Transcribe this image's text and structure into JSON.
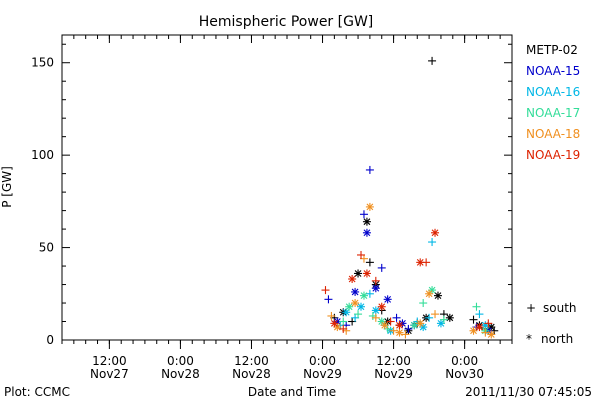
{
  "chart_data": {
    "type": "scatter",
    "title": "Hemispheric Power [GW]",
    "xlabel": "Date and Time",
    "ylabel": "P [GW]",
    "ylim": [
      0,
      165
    ],
    "y_ticks": [
      0,
      50,
      100,
      150
    ],
    "x_ticks": [
      {
        "t": "2011-11-27T12:00",
        "time": "12:00",
        "date": "Nov27"
      },
      {
        "t": "2011-11-28T00:00",
        "time": "0:00",
        "date": "Nov28"
      },
      {
        "t": "2011-11-28T12:00",
        "time": "12:00",
        "date": "Nov28"
      },
      {
        "t": "2011-11-29T00:00",
        "time": "0:00",
        "date": "Nov29"
      },
      {
        "t": "2011-11-29T12:00",
        "time": "12:00",
        "date": "Nov29"
      },
      {
        "t": "2011-11-30T00:00",
        "time": "0:00",
        "date": "Nov30"
      }
    ],
    "xlim": [
      "2011-11-27T04:00",
      "2011-11-30T08:00"
    ],
    "legend_placement": "right",
    "marker_legend": {
      "south": "south",
      "north": "north",
      "south_symbol": "+",
      "north_symbol": "*"
    },
    "series": [
      {
        "name": "METP-02",
        "color": "#000000",
        "points": [
          [
            "2011-11-29T02:00",
            12,
            "+"
          ],
          [
            "2011-11-29T03:30",
            15,
            "*"
          ],
          [
            "2011-11-29T05:00",
            10,
            "+"
          ],
          [
            "2011-11-29T06:00",
            36,
            "*"
          ],
          [
            "2011-11-29T07:30",
            64,
            "*"
          ],
          [
            "2011-11-29T08:00",
            42,
            "+"
          ],
          [
            "2011-11-29T09:00",
            30,
            "*"
          ],
          [
            "2011-11-29T10:00",
            16,
            "+"
          ],
          [
            "2011-11-29T11:00",
            10,
            "*"
          ],
          [
            "2011-11-29T13:00",
            8,
            "+"
          ],
          [
            "2011-11-29T14:30",
            5,
            "*"
          ],
          [
            "2011-11-29T16:00",
            9,
            "+"
          ],
          [
            "2011-11-29T17:30",
            12,
            "*"
          ],
          [
            "2011-11-29T18:30",
            151,
            "+"
          ],
          [
            "2011-11-29T19:30",
            24,
            "*"
          ],
          [
            "2011-11-29T20:30",
            14,
            "+"
          ],
          [
            "2011-11-29T21:30",
            12,
            "*"
          ],
          [
            "2011-11-30T01:30",
            11,
            "+"
          ],
          [
            "2011-11-30T02:30",
            8,
            "*"
          ],
          [
            "2011-11-30T03:30",
            6,
            "+"
          ],
          [
            "2011-11-30T04:30",
            7,
            "*"
          ],
          [
            "2011-11-30T05:00",
            5,
            "+"
          ]
        ]
      },
      {
        "name": "NOAA-15",
        "color": "#0000cc",
        "points": [
          [
            "2011-11-29T01:00",
            22,
            "+"
          ],
          [
            "2011-11-29T02:30",
            10,
            "*"
          ],
          [
            "2011-11-29T04:00",
            8,
            "+"
          ],
          [
            "2011-11-29T05:30",
            26,
            "*"
          ],
          [
            "2011-11-29T07:00",
            68,
            "+"
          ],
          [
            "2011-11-29T07:30",
            58,
            "*"
          ],
          [
            "2011-11-29T08:00",
            92,
            "+"
          ],
          [
            "2011-11-29T09:00",
            28,
            "*"
          ],
          [
            "2011-11-29T10:00",
            39,
            "+"
          ],
          [
            "2011-11-29T11:00",
            22,
            "*"
          ],
          [
            "2011-11-29T12:30",
            12,
            "+"
          ],
          [
            "2011-11-29T13:30",
            9,
            "*"
          ],
          [
            "2011-11-29T14:30",
            6,
            "+"
          ],
          [
            "2011-11-29T15:30",
            8,
            "*"
          ],
          [
            "2011-11-30T02:00",
            7,
            "+"
          ],
          [
            "2011-11-30T04:00",
            5,
            "*"
          ]
        ]
      },
      {
        "name": "NOAA-16",
        "color": "#00b7e6",
        "points": [
          [
            "2011-11-29T03:00",
            8,
            "+"
          ],
          [
            "2011-11-29T04:00",
            15,
            "*"
          ],
          [
            "2011-11-29T05:30",
            12,
            "+"
          ],
          [
            "2011-11-29T06:30",
            18,
            "*"
          ],
          [
            "2011-11-29T08:00",
            25,
            "+"
          ],
          [
            "2011-11-29T09:00",
            16,
            "*"
          ],
          [
            "2011-11-29T10:30",
            8,
            "+"
          ],
          [
            "2011-11-29T11:30",
            5,
            "*"
          ],
          [
            "2011-11-29T16:00",
            10,
            "+"
          ],
          [
            "2011-11-29T17:00",
            7,
            "*"
          ],
          [
            "2011-11-29T18:00",
            12,
            "+"
          ],
          [
            "2011-11-29T18:30",
            53,
            "+"
          ],
          [
            "2011-11-29T20:00",
            9,
            "*"
          ],
          [
            "2011-11-30T02:30",
            14,
            "+"
          ],
          [
            "2011-11-30T03:30",
            8,
            "*"
          ]
        ]
      },
      {
        "name": "NOAA-17",
        "color": "#33dd99",
        "points": [
          [
            "2011-11-29T03:30",
            10,
            "+"
          ],
          [
            "2011-11-29T04:30",
            18,
            "*"
          ],
          [
            "2011-11-29T06:00",
            14,
            "+"
          ],
          [
            "2011-11-29T07:00",
            24,
            "*"
          ],
          [
            "2011-11-29T08:30",
            13,
            "+"
          ],
          [
            "2011-11-29T10:00",
            10,
            "*"
          ],
          [
            "2011-11-29T11:00",
            6,
            "+"
          ],
          [
            "2011-11-29T15:30",
            8,
            "*"
          ],
          [
            "2011-11-29T17:00",
            20,
            "+"
          ],
          [
            "2011-11-29T18:30",
            27,
            "*"
          ],
          [
            "2011-11-29T20:30",
            11,
            "+"
          ],
          [
            "2011-11-30T02:00",
            18,
            "+"
          ],
          [
            "2011-11-30T03:30",
            5,
            "*"
          ]
        ]
      },
      {
        "name": "NOAA-18",
        "color": "#f09020",
        "points": [
          [
            "2011-11-29T01:30",
            13,
            "+"
          ],
          [
            "2011-11-29T02:30",
            7,
            "*"
          ],
          [
            "2011-11-29T04:00",
            5,
            "+"
          ],
          [
            "2011-11-29T05:30",
            20,
            "*"
          ],
          [
            "2011-11-29T07:00",
            44,
            "+"
          ],
          [
            "2011-11-29T08:00",
            72,
            "*"
          ],
          [
            "2011-11-29T09:00",
            12,
            "+"
          ],
          [
            "2011-11-29T10:30",
            8,
            "*"
          ],
          [
            "2011-11-29T12:00",
            5,
            "+"
          ],
          [
            "2011-11-29T13:00",
            4,
            "*"
          ],
          [
            "2011-11-29T14:00",
            3,
            "+"
          ],
          [
            "2011-11-29T16:30",
            9,
            "*"
          ],
          [
            "2011-11-29T18:00",
            25,
            "*"
          ],
          [
            "2011-11-29T19:00",
            14,
            "+"
          ],
          [
            "2011-11-30T01:30",
            5,
            "*"
          ],
          [
            "2011-11-30T03:30",
            4,
            "+"
          ],
          [
            "2011-11-30T04:30",
            3,
            "*"
          ]
        ]
      },
      {
        "name": "NOAA-19",
        "color": "#dd2200",
        "points": [
          [
            "2011-11-29T00:30",
            27,
            "+"
          ],
          [
            "2011-11-29T02:00",
            9,
            "*"
          ],
          [
            "2011-11-29T03:30",
            6,
            "+"
          ],
          [
            "2011-11-29T05:00",
            33,
            "*"
          ],
          [
            "2011-11-29T06:30",
            46,
            "+"
          ],
          [
            "2011-11-29T07:30",
            36,
            "*"
          ],
          [
            "2011-11-29T09:00",
            32,
            "+"
          ],
          [
            "2011-11-29T10:00",
            18,
            "*"
          ],
          [
            "2011-11-29T11:30",
            10,
            "+"
          ],
          [
            "2011-11-29T13:00",
            8,
            "*"
          ],
          [
            "2011-11-29T16:30",
            42,
            "*"
          ],
          [
            "2011-11-29T17:30",
            42,
            "+"
          ],
          [
            "2011-11-29T19:00",
            58,
            "*"
          ],
          [
            "2011-11-30T02:30",
            7,
            "*"
          ],
          [
            "2011-11-30T04:00",
            9,
            "+"
          ]
        ]
      }
    ]
  },
  "footer": {
    "left": "Plot: CCMC",
    "right": "2011/11/30 07:45:05"
  }
}
